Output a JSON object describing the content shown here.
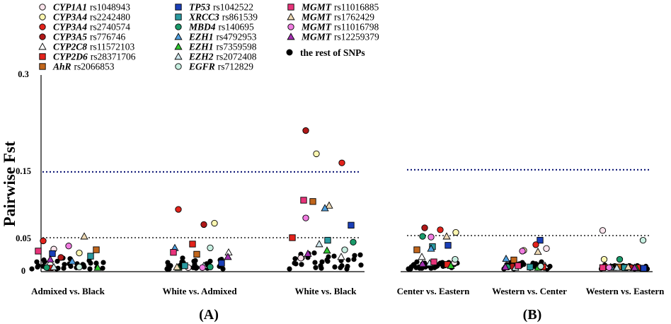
{
  "legend": [
    {
      "gene": "CYP1A1",
      "snp": "rs1048943",
      "marker": "circle",
      "color": "#fbe4ec"
    },
    {
      "gene": "CYP3A4",
      "snp": "rs2242480",
      "marker": "circle",
      "color": "#fbf6b0"
    },
    {
      "gene": "CYP3A4",
      "snp": "rs2740574",
      "marker": "circle",
      "color": "#e3231c"
    },
    {
      "gene": "CYP3A5",
      "snp": "rs776746",
      "marker": "circle",
      "color": "#b01818"
    },
    {
      "gene": "CYP2C8",
      "snp": "rs11572103",
      "marker": "triangle",
      "color": "#ffffff"
    },
    {
      "gene": "CYP2D6",
      "snp": "rs28371706",
      "marker": "square",
      "color": "#e3231c"
    },
    {
      "gene": "AhR",
      "snp": "rs2066853",
      "marker": "square",
      "color": "#c1661c"
    },
    {
      "gene": "TP53",
      "snp": "rs1042522",
      "marker": "square",
      "color": "#1a3fb8"
    },
    {
      "gene": "XRCC3",
      "snp": "rs861539",
      "marker": "square",
      "color": "#2a9aa0"
    },
    {
      "gene": "MBD4",
      "snp": "rs140695",
      "marker": "circle",
      "color": "#1a9a6a"
    },
    {
      "gene": "EZH1",
      "snp": "rs4792953",
      "marker": "triangle",
      "color": "#4fa0e0"
    },
    {
      "gene": "EZH1",
      "snp": "rs7359598",
      "marker": "triangle",
      "color": "#2ec62e"
    },
    {
      "gene": "EZH2",
      "snp": "rs2072408",
      "marker": "triangle",
      "color": "#cfe8ee"
    },
    {
      "gene": "EGFR",
      "snp": "rs712829",
      "marker": "circle",
      "color": "#c6eee0"
    },
    {
      "gene": "MGMT",
      "snp": "rs11016885",
      "marker": "square",
      "color": "#e8337a"
    },
    {
      "gene": "MGMT",
      "snp": "rs1762429",
      "marker": "triangle",
      "color": "#eed9b4"
    },
    {
      "gene": "MGMT",
      "snp": "rs11016798",
      "marker": "circle",
      "color": "#f07ce0"
    },
    {
      "gene": "MGMT",
      "snp": "rs12259379",
      "marker": "triangle",
      "color": "#a42fb2"
    }
  ],
  "legend_rest": "the rest of SNPs",
  "panels": {
    "a": "(A)",
    "b": "(B)"
  },
  "chart_data": {
    "type": "scatter",
    "title": "",
    "xlabel": "",
    "ylabel": "Pairwise Fst",
    "ylim": [
      0,
      0.3
    ],
    "yticks": [
      {
        "value": 0,
        "label": "0"
      },
      {
        "value": 0.05,
        "label": "0.05"
      },
      {
        "value": 0.15,
        "label": "0.15"
      },
      {
        "value": 0.3,
        "label": "0.3"
      }
    ],
    "reference_lines": [
      {
        "value": 0.15,
        "style": "blue dotted"
      },
      {
        "value": 0.05,
        "style": "gray dotted"
      }
    ],
    "comparisons": [
      {
        "label": "Admixed vs. Black",
        "panel": "A",
        "highlighted": [
          {
            "snp": 2,
            "fst": 0.045
          },
          {
            "snp": 0,
            "fst": 0.032
          },
          {
            "snp": 1,
            "fst": 0.026
          },
          {
            "snp": 5,
            "fst": 0.003
          },
          {
            "snp": 3,
            "fst": 0.019
          },
          {
            "snp": 6,
            "fst": 0.031
          },
          {
            "snp": 7,
            "fst": 0.025
          },
          {
            "snp": 14,
            "fst": 0.029
          },
          {
            "snp": 16,
            "fst": 0.037
          },
          {
            "snp": 15,
            "fst": 0.052
          },
          {
            "snp": 4,
            "fst": 0.011
          },
          {
            "snp": 8,
            "fst": 0.021
          },
          {
            "snp": 9,
            "fst": 0.003
          },
          {
            "snp": 10,
            "fst": 0.013
          },
          {
            "snp": 11,
            "fst": 0.003
          },
          {
            "snp": 12,
            "fst": 0.004
          },
          {
            "snp": 13,
            "fst": 0.004
          },
          {
            "snp": 17,
            "fst": 0.016
          }
        ]
      },
      {
        "label": "White vs. Admixed",
        "panel": "A",
        "highlighted": [
          {
            "snp": 2,
            "fst": 0.093
          },
          {
            "snp": 3,
            "fst": 0.07
          },
          {
            "snp": 1,
            "fst": 0.072
          },
          {
            "snp": 5,
            "fst": 0.04
          },
          {
            "snp": 0,
            "fst": 0.003
          },
          {
            "snp": 4,
            "fst": 0.027
          },
          {
            "snp": 6,
            "fst": 0.024
          },
          {
            "snp": 10,
            "fst": 0.034
          },
          {
            "snp": 13,
            "fst": 0.034
          },
          {
            "snp": 14,
            "fst": 0.027
          },
          {
            "snp": 7,
            "fst": 0.01
          },
          {
            "snp": 8,
            "fst": 0.006
          },
          {
            "snp": 9,
            "fst": 0.004
          },
          {
            "snp": 11,
            "fst": 0.003
          },
          {
            "snp": 12,
            "fst": 0.006
          },
          {
            "snp": 15,
            "fst": 0.004
          },
          {
            "snp": 16,
            "fst": 0.003
          },
          {
            "snp": 17,
            "fst": 0.02
          }
        ]
      },
      {
        "label": "White vs. Black",
        "panel": "A",
        "highlighted": [
          {
            "snp": 3,
            "fst": 0.214
          },
          {
            "snp": 1,
            "fst": 0.178
          },
          {
            "snp": 2,
            "fst": 0.164
          },
          {
            "snp": 6,
            "fst": 0.105
          },
          {
            "snp": 14,
            "fst": 0.107
          },
          {
            "snp": 15,
            "fst": 0.099
          },
          {
            "snp": 10,
            "fst": 0.095
          },
          {
            "snp": 16,
            "fst": 0.08
          },
          {
            "snp": 7,
            "fst": 0.069
          },
          {
            "snp": 5,
            "fst": 0.05
          },
          {
            "snp": 8,
            "fst": 0.046
          },
          {
            "snp": 9,
            "fst": 0.043
          },
          {
            "snp": 12,
            "fst": 0.04
          },
          {
            "snp": 13,
            "fst": 0.031
          },
          {
            "snp": 0,
            "fst": 0.018
          },
          {
            "snp": 4,
            "fst": 0.02
          },
          {
            "snp": 11,
            "fst": 0.03
          },
          {
            "snp": 17,
            "fst": 0.025
          }
        ]
      },
      {
        "label": "Center vs. Eastern",
        "panel": "B",
        "highlighted": [
          {
            "snp": 3,
            "fst": 0.065
          },
          {
            "snp": 2,
            "fst": 0.062
          },
          {
            "snp": 1,
            "fst": 0.058
          },
          {
            "snp": 9,
            "fst": 0.052
          },
          {
            "snp": 16,
            "fst": 0.051
          },
          {
            "snp": 15,
            "fst": 0.052
          },
          {
            "snp": 8,
            "fst": 0.036
          },
          {
            "snp": 7,
            "fst": 0.038
          },
          {
            "snp": 6,
            "fst": 0.031
          },
          {
            "snp": 0,
            "fst": 0.011
          },
          {
            "snp": 10,
            "fst": 0.033
          },
          {
            "snp": 4,
            "fst": 0.02
          },
          {
            "snp": 5,
            "fst": 0.008
          },
          {
            "snp": 11,
            "fst": 0.006
          },
          {
            "snp": 12,
            "fst": 0.01
          },
          {
            "snp": 13,
            "fst": 0.016
          },
          {
            "snp": 14,
            "fst": 0.012
          },
          {
            "snp": 17,
            "fst": 0.009
          }
        ]
      },
      {
        "label": "Western vs. Center",
        "panel": "B",
        "highlighted": [
          {
            "snp": 7,
            "fst": 0.046
          },
          {
            "snp": 2,
            "fst": 0.039
          },
          {
            "snp": 0,
            "fst": 0.033
          },
          {
            "snp": 1,
            "fst": 0.03
          },
          {
            "snp": 16,
            "fst": 0.029
          },
          {
            "snp": 15,
            "fst": 0.028
          },
          {
            "snp": 6,
            "fst": 0.015
          },
          {
            "snp": 10,
            "fst": 0.017
          },
          {
            "snp": 4,
            "fst": 0.006
          },
          {
            "snp": 3,
            "fst": 0.005
          },
          {
            "snp": 5,
            "fst": 0.004
          },
          {
            "snp": 8,
            "fst": 0.004
          },
          {
            "snp": 9,
            "fst": 0.004
          },
          {
            "snp": 11,
            "fst": 0.003
          },
          {
            "snp": 12,
            "fst": 0.003
          },
          {
            "snp": 13,
            "fst": 0.005
          },
          {
            "snp": 14,
            "fst": 0.006
          },
          {
            "snp": 17,
            "fst": 0.004
          }
        ]
      },
      {
        "label": "Western vs. Eastern",
        "panel": "B",
        "highlighted": [
          {
            "snp": 0,
            "fst": 0.061
          },
          {
            "snp": 13,
            "fst": 0.046
          },
          {
            "snp": 1,
            "fst": 0.016
          },
          {
            "snp": 9,
            "fst": 0.016
          },
          {
            "snp": 2,
            "fst": 0.004
          },
          {
            "snp": 3,
            "fst": 0.003
          },
          {
            "snp": 4,
            "fst": 0.003
          },
          {
            "snp": 5,
            "fst": 0.003
          },
          {
            "snp": 6,
            "fst": 0.004
          },
          {
            "snp": 7,
            "fst": 0.002
          },
          {
            "snp": 8,
            "fst": 0.003
          },
          {
            "snp": 10,
            "fst": 0.004
          },
          {
            "snp": 11,
            "fst": 0.003
          },
          {
            "snp": 12,
            "fst": 0.003
          },
          {
            "snp": 14,
            "fst": 0.003
          },
          {
            "snp": 15,
            "fst": 0.004
          },
          {
            "snp": 16,
            "fst": 0.003
          },
          {
            "snp": 17,
            "fst": 0.003
          }
        ]
      }
    ],
    "rest_of_snps": [
      [
        0.001,
        0.002,
        0.004,
        0.006,
        0.008,
        0.01,
        0.012,
        0.005,
        0.003,
        0.002,
        0.009,
        0.011,
        0.013,
        0.007,
        0.004,
        0.002,
        0.001,
        0.015,
        0.017,
        0.01,
        0.006,
        0.003,
        0.002,
        0.001,
        0.008,
        0.012,
        0.018,
        0.014,
        0.005,
        0.009
      ],
      [
        0.001,
        0.003,
        0.005,
        0.007,
        0.009,
        0.011,
        0.013,
        0.015,
        0.004,
        0.002,
        0.006,
        0.008,
        0.01,
        0.012,
        0.003,
        0.001,
        0.014,
        0.016,
        0.018,
        0.007,
        0.005,
        0.002,
        0.009,
        0.011,
        0.004,
        0.006,
        0.003,
        0.001,
        0.008,
        0.013
      ],
      [
        0.001,
        0.003,
        0.006,
        0.009,
        0.012,
        0.015,
        0.018,
        0.02,
        0.022,
        0.025,
        0.004,
        0.007,
        0.011,
        0.014,
        0.017,
        0.002,
        0.005,
        0.008,
        0.013,
        0.016,
        0.019,
        0.021,
        0.023,
        0.026,
        0.003,
        0.01,
        0.006,
        0.001,
        0.024,
        0.015
      ],
      [
        0.001,
        0.003,
        0.004,
        0.006,
        0.008,
        0.01,
        0.012,
        0.005,
        0.002,
        0.007,
        0.009,
        0.011,
        0.004,
        0.003,
        0.006,
        0.008,
        0.002,
        0.01,
        0.012,
        0.001,
        0.005,
        0.007,
        0.009,
        0.003,
        0.011,
        0.004,
        0.006,
        0.002,
        0.008,
        0.01
      ],
      [
        0.001,
        0.002,
        0.004,
        0.006,
        0.008,
        0.01,
        0.003,
        0.005,
        0.007,
        0.009,
        0.011,
        0.002,
        0.004,
        0.006,
        0.001,
        0.008,
        0.01,
        0.012,
        0.003,
        0.005,
        0.007,
        0.002,
        0.009,
        0.004,
        0.006,
        0.001,
        0.011,
        0.003,
        0.008,
        0.005
      ],
      [
        0.001,
        0.002,
        0.003,
        0.004,
        0.005,
        0.006,
        0.002,
        0.003,
        0.004,
        0.001,
        0.005,
        0.007,
        0.003,
        0.002,
        0.004,
        0.006,
        0.001,
        0.003,
        0.005,
        0.002,
        0.004,
        0.006,
        0.003,
        0.001,
        0.005,
        0.002,
        0.004,
        0.003,
        0.006,
        0.002
      ]
    ]
  }
}
